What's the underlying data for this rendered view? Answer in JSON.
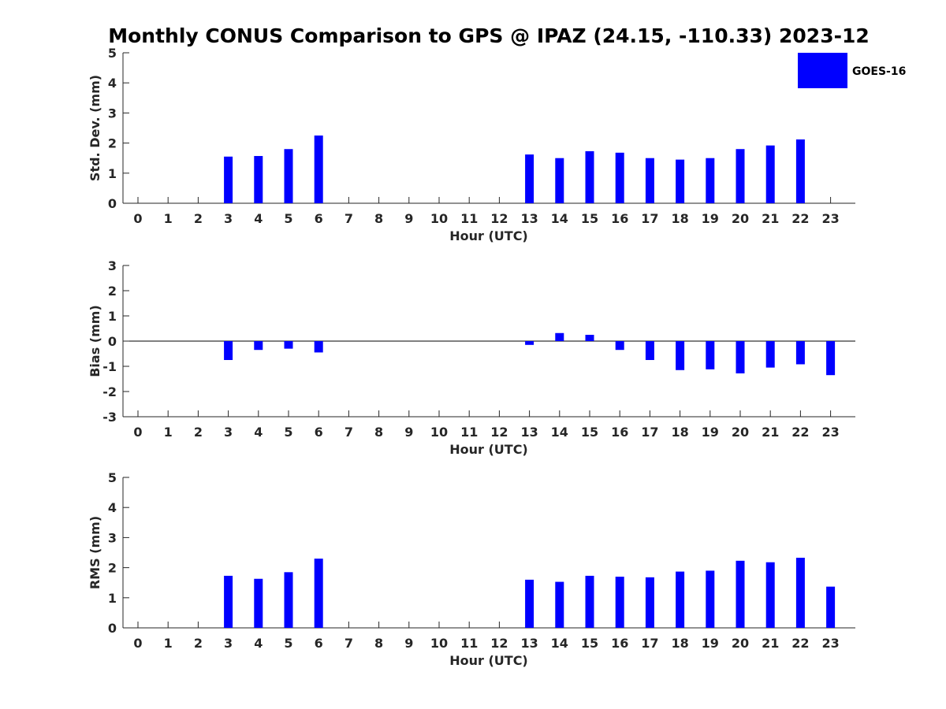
{
  "title": "Monthly CONUS Comparison to GPS @ IPAZ (24.15, -110.33) 2023-12",
  "legend": {
    "label": "GOES-16",
    "color": "#0000ff",
    "position": "top-right"
  },
  "chart_data": [
    {
      "type": "bar",
      "ylabel": "Std. Dev. (mm)",
      "xlabel": "Hour (UTC)",
      "categories": [
        "0",
        "1",
        "2",
        "3",
        "4",
        "5",
        "6",
        "7",
        "8",
        "9",
        "10",
        "11",
        "12",
        "13",
        "14",
        "15",
        "16",
        "17",
        "18",
        "19",
        "20",
        "21",
        "22",
        "23"
      ],
      "ylim": [
        0,
        5
      ],
      "yticks": [
        0,
        1,
        2,
        3,
        4,
        5
      ],
      "grid": false,
      "series": [
        {
          "name": "GOES-16",
          "color": "#0000ff",
          "values": [
            null,
            null,
            null,
            1.55,
            1.57,
            1.8,
            2.25,
            null,
            null,
            null,
            null,
            null,
            null,
            1.62,
            1.5,
            1.73,
            1.68,
            1.5,
            1.45,
            1.5,
            1.8,
            1.92,
            2.12,
            null
          ]
        }
      ]
    },
    {
      "type": "bar",
      "ylabel": "Bias (mm)",
      "xlabel": "Hour (UTC)",
      "categories": [
        "0",
        "1",
        "2",
        "3",
        "4",
        "5",
        "6",
        "7",
        "8",
        "9",
        "10",
        "11",
        "12",
        "13",
        "14",
        "15",
        "16",
        "17",
        "18",
        "19",
        "20",
        "21",
        "22",
        "23"
      ],
      "ylim": [
        -3,
        3
      ],
      "yticks": [
        -3,
        -2,
        -1,
        0,
        1,
        2,
        3
      ],
      "grid": false,
      "zero_line": true,
      "series": [
        {
          "name": "GOES-16",
          "color": "#0000ff",
          "values": [
            null,
            null,
            null,
            -0.75,
            -0.35,
            -0.3,
            -0.45,
            null,
            null,
            null,
            null,
            null,
            null,
            -0.15,
            0.32,
            0.25,
            -0.35,
            -0.75,
            -1.15,
            -1.12,
            -1.28,
            -1.05,
            -0.92,
            -1.35
          ]
        }
      ]
    },
    {
      "type": "bar",
      "ylabel": "RMS (mm)",
      "xlabel": "Hour (UTC)",
      "categories": [
        "0",
        "1",
        "2",
        "3",
        "4",
        "5",
        "6",
        "7",
        "8",
        "9",
        "10",
        "11",
        "12",
        "13",
        "14",
        "15",
        "16",
        "17",
        "18",
        "19",
        "20",
        "21",
        "22",
        "23"
      ],
      "ylim": [
        0,
        5
      ],
      "yticks": [
        0,
        1,
        2,
        3,
        4,
        5
      ],
      "grid": false,
      "series": [
        {
          "name": "GOES-16",
          "color": "#0000ff",
          "values": [
            null,
            null,
            null,
            1.73,
            1.63,
            1.85,
            2.3,
            null,
            null,
            null,
            null,
            null,
            null,
            1.6,
            1.53,
            1.73,
            1.7,
            1.68,
            1.87,
            1.9,
            2.23,
            2.18,
            2.33,
            1.37
          ]
        }
      ]
    }
  ]
}
